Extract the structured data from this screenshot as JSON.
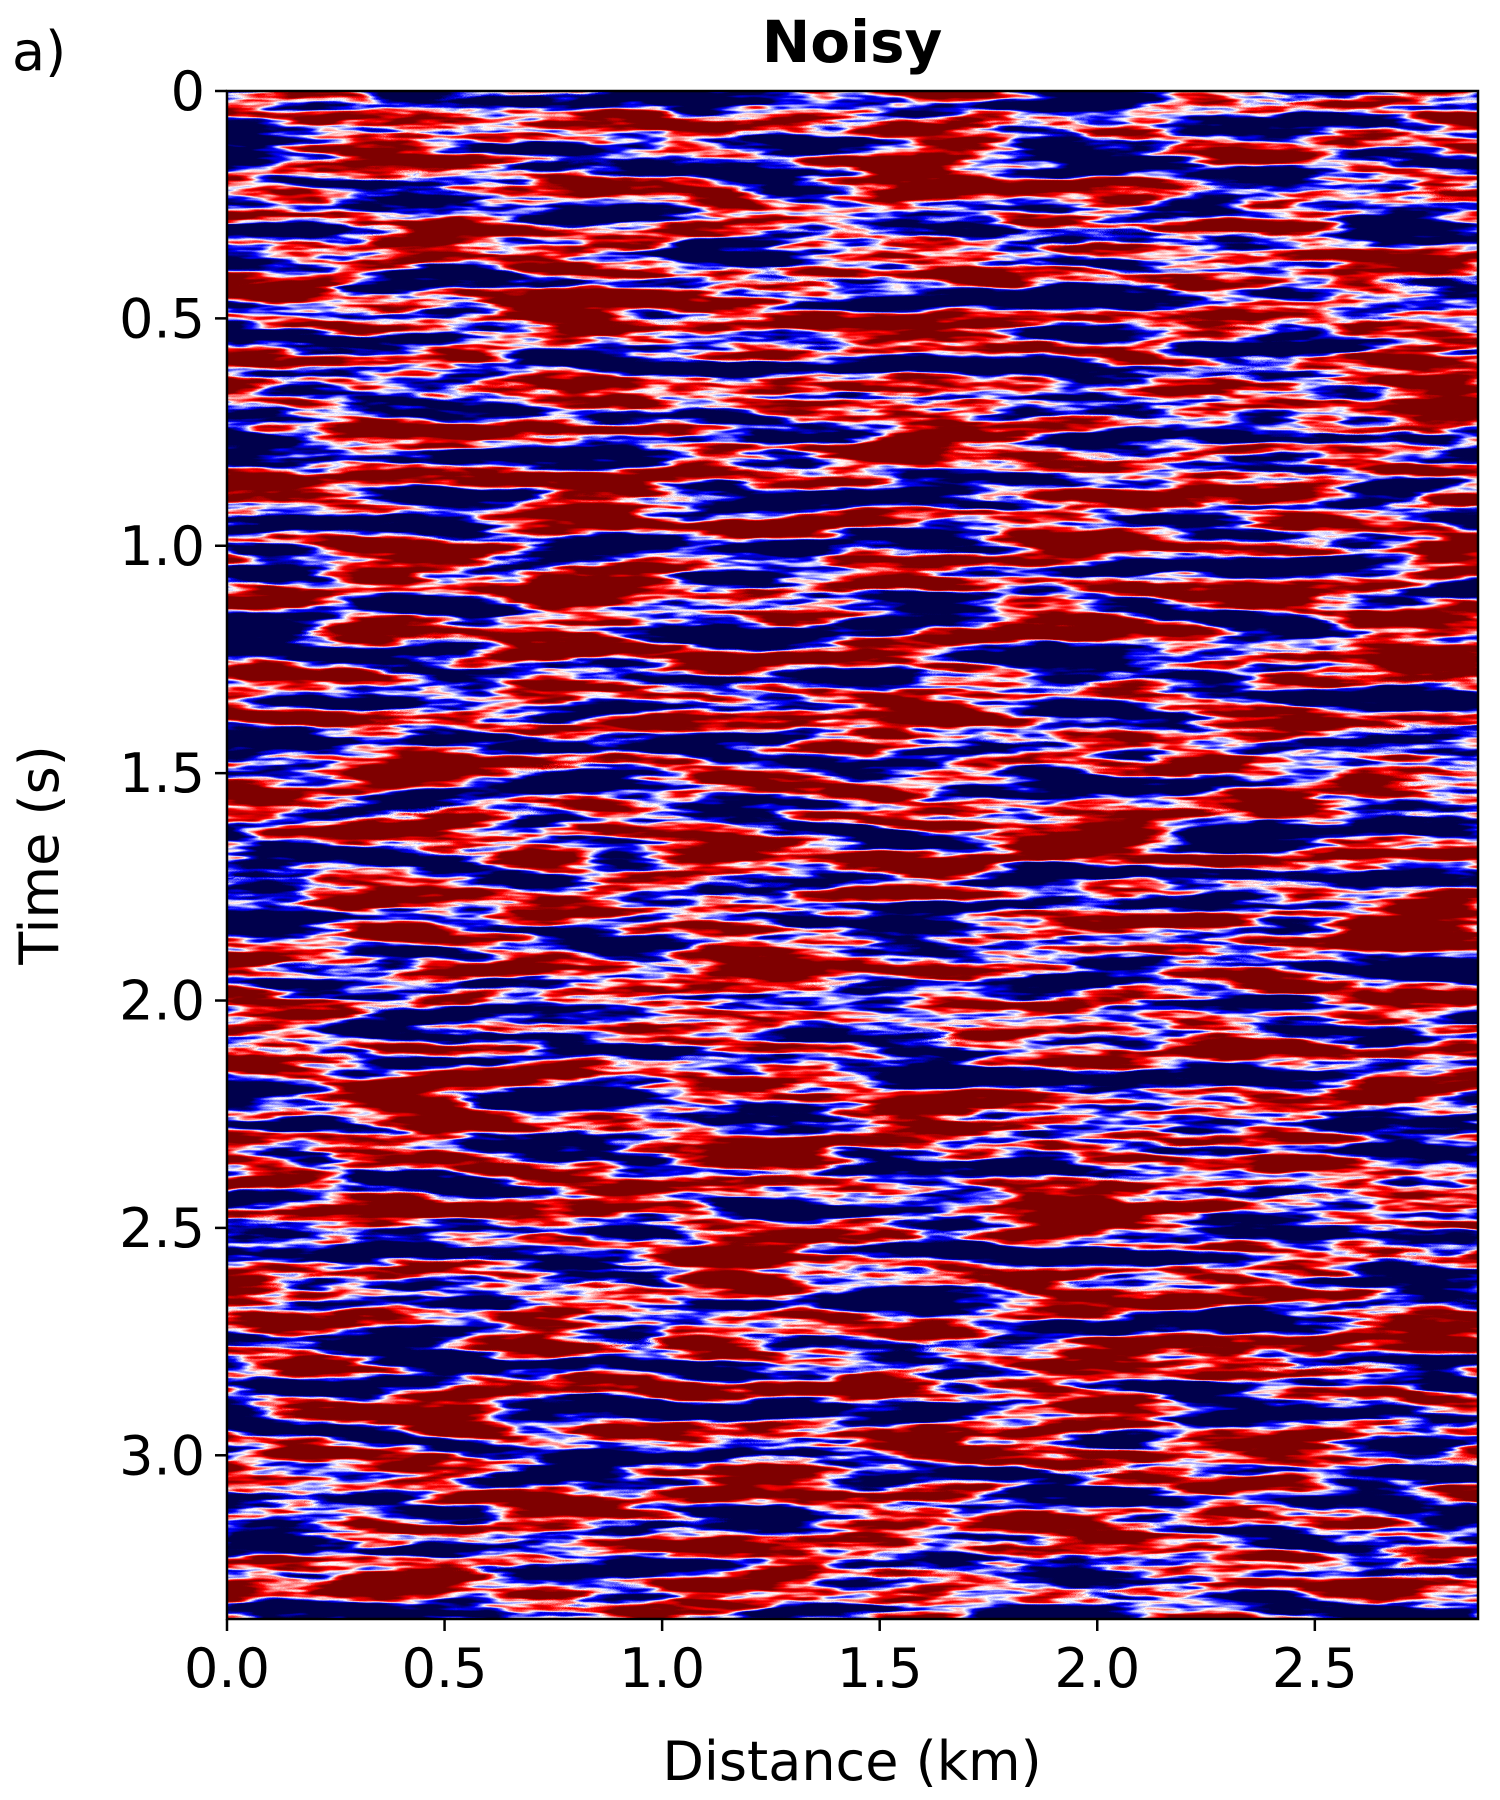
{
  "panel_label": "a)",
  "chart_data": {
    "type": "image",
    "title": "Noisy",
    "x_label": "Distance (km)",
    "y_label": "Time (s)",
    "xlim": [
      0,
      2.875
    ],
    "ylim": [
      3.36,
      0
    ],
    "xticks": [
      {
        "value": 0,
        "label": "0.0"
      },
      0.5,
      {
        "value": 1,
        "label": "1.0"
      },
      1.5,
      {
        "value": 2,
        "label": "2.0"
      },
      2.5
    ],
    "yticks": [
      0,
      0.5,
      {
        "value": 1,
        "label": "1.0"
      },
      1.5,
      {
        "value": 2,
        "label": "2.0"
      },
      2.5,
      {
        "value": 3,
        "label": "3.0"
      }
    ],
    "colormap": "seismic"
  }
}
